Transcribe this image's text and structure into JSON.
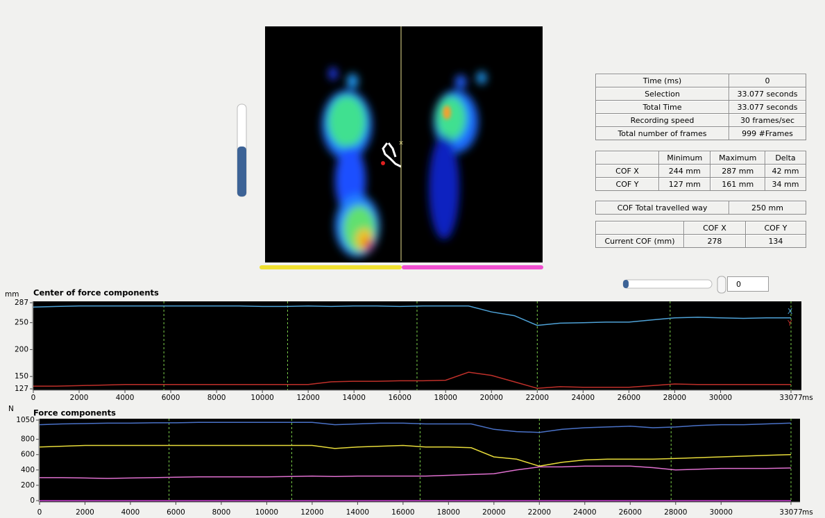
{
  "info_table": {
    "rows": [
      [
        "Time (ms)",
        "0"
      ],
      [
        "Selection",
        "33.077 seconds"
      ],
      [
        "Total Time",
        "33.077 seconds"
      ],
      [
        "Recording speed",
        "30 frames/sec"
      ],
      [
        "Total number of frames",
        "999 #Frames"
      ]
    ]
  },
  "stats_table": {
    "header": [
      "Minimum",
      "Maximum",
      "Delta"
    ],
    "rows": [
      [
        "COF X",
        "244 mm",
        "287 mm",
        "42 mm"
      ],
      [
        "COF Y",
        "127 mm",
        "161 mm",
        "34 mm"
      ]
    ]
  },
  "travel": {
    "label": "COF Total travelled way",
    "value": "250 mm"
  },
  "current_cof": {
    "header": [
      "COF X",
      "COF Y"
    ],
    "row": [
      "Current COF (mm)",
      "278",
      "134"
    ]
  },
  "selection_spinner": 0,
  "chart_data": [
    {
      "type": "line",
      "title": "Center of force components",
      "y_unit": "mm",
      "x_unit": "ms",
      "x": [
        0,
        1000,
        2000,
        3000,
        4000,
        5000,
        6000,
        7000,
        8000,
        9000,
        10000,
        11000,
        12000,
        13000,
        14000,
        15000,
        16000,
        17000,
        18000,
        19000,
        20000,
        21000,
        22000,
        23000,
        24000,
        25000,
        26000,
        27000,
        28000,
        29000,
        30000,
        31000,
        32000,
        33000,
        33077
      ],
      "series": [
        {
          "name": "X",
          "color": "#4fa3d8",
          "values": [
            279,
            280,
            281,
            281,
            281,
            281,
            281,
            281,
            281,
            281,
            280,
            280,
            281,
            280,
            281,
            281,
            280,
            281,
            281,
            281,
            270,
            263,
            245,
            249,
            250,
            251,
            251,
            255,
            259,
            260,
            259,
            258,
            259,
            259,
            259
          ]
        },
        {
          "name": "Y",
          "color": "#c0302a",
          "values": [
            132,
            132,
            133,
            134,
            135,
            135,
            135,
            135,
            135,
            135,
            135,
            135,
            135,
            140,
            141,
            141,
            142,
            142,
            143,
            158,
            152,
            140,
            128,
            131,
            130,
            130,
            130,
            133,
            136,
            135,
            135,
            135,
            135,
            135,
            135
          ]
        }
      ],
      "markers": [
        5700,
        11100,
        16750,
        22000,
        27800,
        33077
      ],
      "marker_color": "#7ccf4a",
      "xlim": [
        0,
        33077
      ],
      "xticks": [
        0,
        2000,
        4000,
        6000,
        8000,
        10000,
        12000,
        14000,
        16000,
        18000,
        20000,
        22000,
        24000,
        26000,
        28000,
        30000,
        33077
      ],
      "ylim": [
        127,
        287
      ],
      "yticks": [
        127,
        150,
        200,
        250,
        287
      ]
    },
    {
      "type": "line",
      "title": "Force components",
      "y_unit": "N",
      "x_unit": "ms",
      "x": [
        0,
        1000,
        2000,
        3000,
        4000,
        5000,
        6000,
        7000,
        8000,
        9000,
        10000,
        11000,
        12000,
        13000,
        14000,
        15000,
        16000,
        17000,
        18000,
        19000,
        20000,
        21000,
        22000,
        23000,
        24000,
        25000,
        26000,
        27000,
        28000,
        29000,
        30000,
        31000,
        32000,
        33000,
        33077
      ],
      "series": [
        {
          "color": "#4a72c8",
          "values": [
            990,
            1000,
            1005,
            1010,
            1010,
            1015,
            1015,
            1020,
            1020,
            1020,
            1020,
            1020,
            1020,
            990,
            1000,
            1010,
            1010,
            1000,
            1000,
            1000,
            930,
            900,
            890,
            930,
            950,
            960,
            970,
            950,
            960,
            980,
            990,
            990,
            1000,
            1010,
            1010
          ]
        },
        {
          "color": "#e8dc3a",
          "values": [
            700,
            710,
            720,
            720,
            720,
            720,
            720,
            720,
            720,
            720,
            720,
            720,
            720,
            680,
            700,
            710,
            720,
            700,
            700,
            690,
            570,
            540,
            450,
            500,
            530,
            540,
            540,
            540,
            550,
            560,
            570,
            580,
            590,
            600,
            600
          ]
        },
        {
          "color": "#e070d0",
          "values": [
            300,
            300,
            295,
            290,
            295,
            300,
            305,
            310,
            310,
            310,
            310,
            315,
            320,
            315,
            320,
            320,
            320,
            320,
            330,
            340,
            350,
            400,
            440,
            440,
            450,
            450,
            450,
            430,
            400,
            410,
            420,
            420,
            420,
            425,
            425
          ]
        },
        {
          "color": "#d040d8",
          "values": [
            0,
            0,
            0,
            0,
            0,
            0,
            0,
            0,
            0,
            0,
            0,
            0,
            0,
            0,
            0,
            0,
            0,
            0,
            0,
            0,
            0,
            0,
            0,
            0,
            0,
            0,
            0,
            0,
            0,
            0,
            0,
            0,
            0,
            0,
            0
          ]
        }
      ],
      "markers": [
        5700,
        11100,
        16750,
        22000,
        27800,
        33077
      ],
      "marker_color": "#7ccf4a",
      "xlim": [
        0,
        33077
      ],
      "xticks": [
        0,
        2000,
        4000,
        6000,
        8000,
        10000,
        12000,
        14000,
        16000,
        18000,
        20000,
        22000,
        24000,
        26000,
        28000,
        30000,
        33077
      ],
      "ylim": [
        0,
        1050
      ],
      "yticks": [
        0,
        200,
        400,
        600,
        800,
        1050
      ]
    }
  ]
}
